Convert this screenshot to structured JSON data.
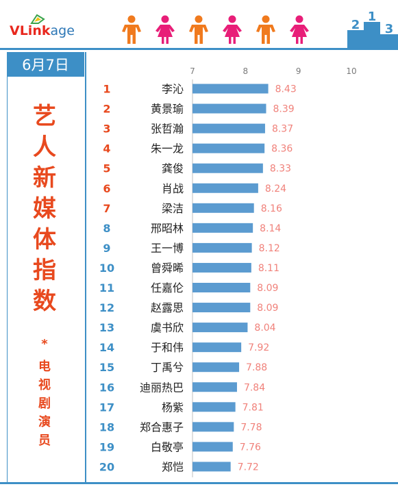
{
  "header": {
    "logo_bold": "VLink",
    "logo_rest": "age",
    "people_icons": [
      "male-icon",
      "female-icon",
      "male-icon",
      "female-icon",
      "male-icon",
      "female-icon"
    ],
    "podium_numbers": [
      "2",
      "1",
      "3"
    ]
  },
  "date": "6月7日",
  "side_title": "艺人新媒体指数",
  "side_star": "*",
  "side_subtitle": "电视剧演员",
  "colors": {
    "accent_blue": "#3d8fc6",
    "bar": "#5b9bd0",
    "value_label": "#f0817a",
    "rank_label": "#e8491e",
    "title": "#e8491e",
    "male_icon": "#f07a1e",
    "female_icon": "#e81e78"
  },
  "chart_data": {
    "type": "bar",
    "orientation": "horizontal",
    "title": "",
    "xlabel": "",
    "ylabel": "",
    "xlim": [
      7,
      10
    ],
    "ticks": [
      7,
      8,
      9,
      10
    ],
    "grid": false,
    "categories": [
      "李沁",
      "黄景瑜",
      "张哲瀚",
      "朱一龙",
      "龚俊",
      "肖战",
      "梁洁",
      "邢昭林",
      "王一博",
      "曾舜晞",
      "任嘉伦",
      "赵露思",
      "虞书欣",
      "于和伟",
      "丁禹兮",
      "迪丽热巴",
      "杨紫",
      "郑合惠子",
      "白敬亭",
      "郑恺"
    ],
    "ranks": [
      "1",
      "2",
      "3",
      "4",
      "5",
      "6",
      "7",
      "8",
      "9",
      "10",
      "11",
      "12",
      "13",
      "14",
      "15",
      "16",
      "17",
      "18",
      "19",
      "20"
    ],
    "values": [
      8.43,
      8.39,
      8.37,
      8.36,
      8.33,
      8.24,
      8.16,
      8.14,
      8.12,
      8.11,
      8.09,
      8.09,
      8.04,
      7.92,
      7.88,
      7.84,
      7.81,
      7.78,
      7.76,
      7.72
    ],
    "value_labels": [
      "8.43",
      "8.39",
      "8.37",
      "8.36",
      "8.33",
      "8.24",
      "8.16",
      "8.14",
      "8.12",
      "8.11",
      "8.09",
      "8.09",
      "8.04",
      "7.92",
      "7.88",
      "7.84",
      "7.81",
      "7.78",
      "7.76",
      "7.72"
    ]
  }
}
